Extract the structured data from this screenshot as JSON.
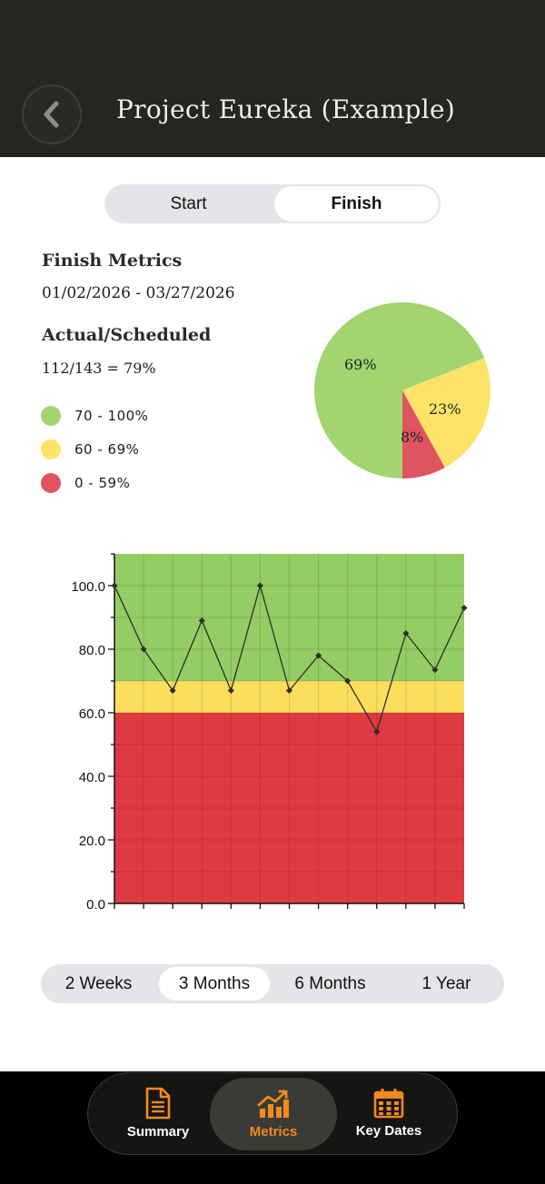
{
  "header": {
    "title": "Project Eureka (Example)",
    "back_icon": "chevron-left-icon"
  },
  "mode_toggle": {
    "options": [
      "Start",
      "Finish"
    ],
    "selected": "Finish"
  },
  "metrics": {
    "heading": "Finish Metrics",
    "date_range": "01/02/2026 - 03/27/2026",
    "ratio_heading": "Actual/Scheduled",
    "ratio_value": "112/143 = 79%"
  },
  "legend": [
    {
      "label": "70 - 100%",
      "color": "#a2d470"
    },
    {
      "label": "60 - 69%",
      "color": "#fde468"
    },
    {
      "label": "0 - 59%",
      "color": "#e0545f"
    }
  ],
  "pie_labels": {
    "green": "69%",
    "yellow": "23%",
    "red": "8%"
  },
  "range_toggle": {
    "options": [
      "2 Weeks",
      "3 Months",
      "6 Months",
      "1 Year"
    ],
    "selected": "3 Months"
  },
  "tabbar": {
    "items": [
      {
        "label": "Summary",
        "icon": "document-icon"
      },
      {
        "label": "Metrics",
        "icon": "chart-trend-icon"
      },
      {
        "label": "Key Dates",
        "icon": "calendar-icon"
      }
    ],
    "selected": "Metrics",
    "accent": "#f28a1c"
  },
  "colors": {
    "green_band": "#93cd63",
    "yellow_band": "#fcde5d",
    "red_band": "#df3a41",
    "header_bg": "#26251f"
  },
  "chart_data": [
    {
      "type": "pie",
      "categories": [
        "70 - 100%",
        "60 - 69%",
        "0 - 59%"
      ],
      "values": [
        69,
        23,
        8
      ],
      "colors": [
        "#a2d470",
        "#fde468",
        "#e0545f"
      ]
    },
    {
      "type": "line",
      "y_tick_labels": [
        "0.0",
        "20.0",
        "40.0",
        "60.0",
        "80.0",
        "100.0"
      ],
      "ylim": [
        0,
        110
      ],
      "yticks": [
        0,
        20,
        40,
        60,
        80,
        100
      ],
      "x": [
        0,
        1,
        2,
        3,
        4,
        5,
        6,
        7,
        8,
        9,
        10,
        11,
        12
      ],
      "values": [
        100,
        80,
        67,
        89,
        67,
        100,
        67,
        78,
        70,
        54,
        85,
        73.5,
        93
      ],
      "bands": [
        {
          "from": 0,
          "to": 60,
          "color": "#df3a41"
        },
        {
          "from": 60,
          "to": 70,
          "color": "#fcde5d"
        },
        {
          "from": 70,
          "to": 110,
          "color": "#93cd63"
        }
      ],
      "grid": true,
      "line_color": "#2d2d2d"
    }
  ]
}
